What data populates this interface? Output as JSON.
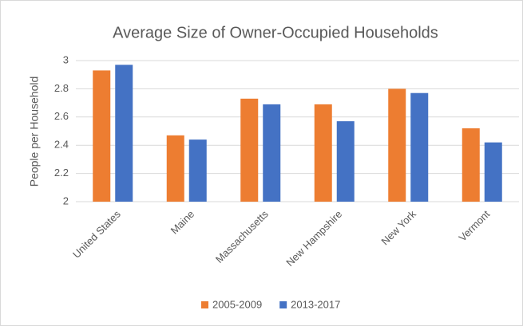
{
  "chart_data": {
    "type": "bar",
    "title": "Average Size of Owner-Occupied Households",
    "y_label": "People per Household",
    "categories": [
      "United States",
      "Maine",
      "Massachusetts",
      "New Hampshire",
      "New York",
      "Vermont"
    ],
    "series": [
      {
        "name": "2005-2009",
        "color": "#ed7d31",
        "values": [
          2.93,
          2.47,
          2.73,
          2.69,
          2.8,
          2.52
        ]
      },
      {
        "name": "2013-2017",
        "color": "#4472c4",
        "values": [
          2.97,
          2.44,
          2.69,
          2.57,
          2.77,
          2.42
        ]
      }
    ],
    "ylim": [
      2,
      3
    ],
    "yticks": [
      2,
      2.2,
      2.4,
      2.6,
      2.8,
      3
    ],
    "grid": true,
    "legend": "bottom"
  }
}
